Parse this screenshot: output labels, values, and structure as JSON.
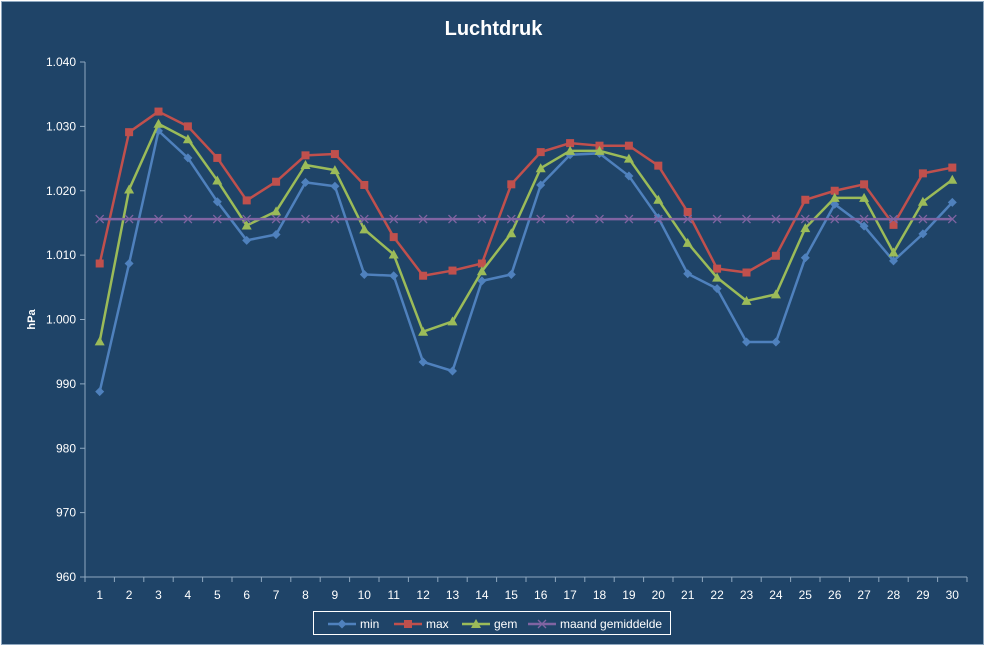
{
  "chart_data": {
    "type": "line",
    "title": "Luchtdruk",
    "xlabel": "",
    "ylabel": "hPa",
    "categories": [
      "1",
      "2",
      "3",
      "4",
      "5",
      "6",
      "7",
      "8",
      "9",
      "10",
      "11",
      "12",
      "13",
      "14",
      "15",
      "16",
      "17",
      "18",
      "19",
      "20",
      "21",
      "22",
      "23",
      "24",
      "25",
      "26",
      "27",
      "28",
      "29",
      "30"
    ],
    "ylim": [
      960,
      1040
    ],
    "yticks": [
      960,
      970,
      980,
      990,
      1000,
      1010,
      1020,
      1030,
      1040
    ],
    "ytick_labels": [
      "960",
      "970",
      "980",
      "990",
      "1.000",
      "1.010",
      "1.020",
      "1.030",
      "1.040"
    ],
    "grid": false,
    "legend_position": "bottom",
    "series": [
      {
        "name": "min",
        "color": "#4f81bd",
        "marker": "diamond",
        "values": [
          988.8,
          1008.7,
          1029.3,
          1025.1,
          1018.3,
          1012.3,
          1013.2,
          1021.3,
          1020.7,
          1007.0,
          1006.8,
          993.4,
          992.0,
          1006.0,
          1007.0,
          1020.9,
          1025.6,
          1025.8,
          1022.3,
          1015.8,
          1007.1,
          1004.8,
          996.5,
          996.5,
          1009.6,
          1017.9,
          1014.5,
          1009.1,
          1013.3,
          1018.2
        ]
      },
      {
        "name": "max",
        "color": "#c0504d",
        "marker": "square",
        "values": [
          1008.7,
          1029.1,
          1032.3,
          1030.0,
          1025.1,
          1018.5,
          1021.4,
          1025.5,
          1025.7,
          1020.9,
          1012.8,
          1006.8,
          1007.6,
          1008.7,
          1021.0,
          1026.0,
          1027.4,
          1027.0,
          1027.0,
          1023.9,
          1016.7,
          1007.9,
          1007.3,
          1009.9,
          1018.6,
          1020.0,
          1021.0,
          1014.7,
          1022.7,
          1023.6
        ]
      },
      {
        "name": "gem",
        "color": "#9bbb59",
        "marker": "triangle",
        "values": [
          996.6,
          1020.2,
          1030.4,
          1028.0,
          1021.6,
          1014.6,
          1016.8,
          1024.0,
          1023.2,
          1014.0,
          1010.1,
          998.1,
          999.7,
          1007.5,
          1013.4,
          1023.5,
          1026.2,
          1026.2,
          1025.0,
          1018.6,
          1011.9,
          1006.5,
          1002.9,
          1003.9,
          1014.2,
          1018.9,
          1018.9,
          1010.4,
          1018.3,
          1021.7
        ]
      },
      {
        "name": "maand gemiddelde",
        "color": "#8064a2",
        "marker": "x",
        "values": [
          1015.6,
          1015.6,
          1015.6,
          1015.6,
          1015.6,
          1015.6,
          1015.6,
          1015.6,
          1015.6,
          1015.6,
          1015.6,
          1015.6,
          1015.6,
          1015.6,
          1015.6,
          1015.6,
          1015.6,
          1015.6,
          1015.6,
          1015.6,
          1015.6,
          1015.6,
          1015.6,
          1015.6,
          1015.6,
          1015.6,
          1015.6,
          1015.6,
          1015.6,
          1015.6
        ]
      }
    ]
  }
}
